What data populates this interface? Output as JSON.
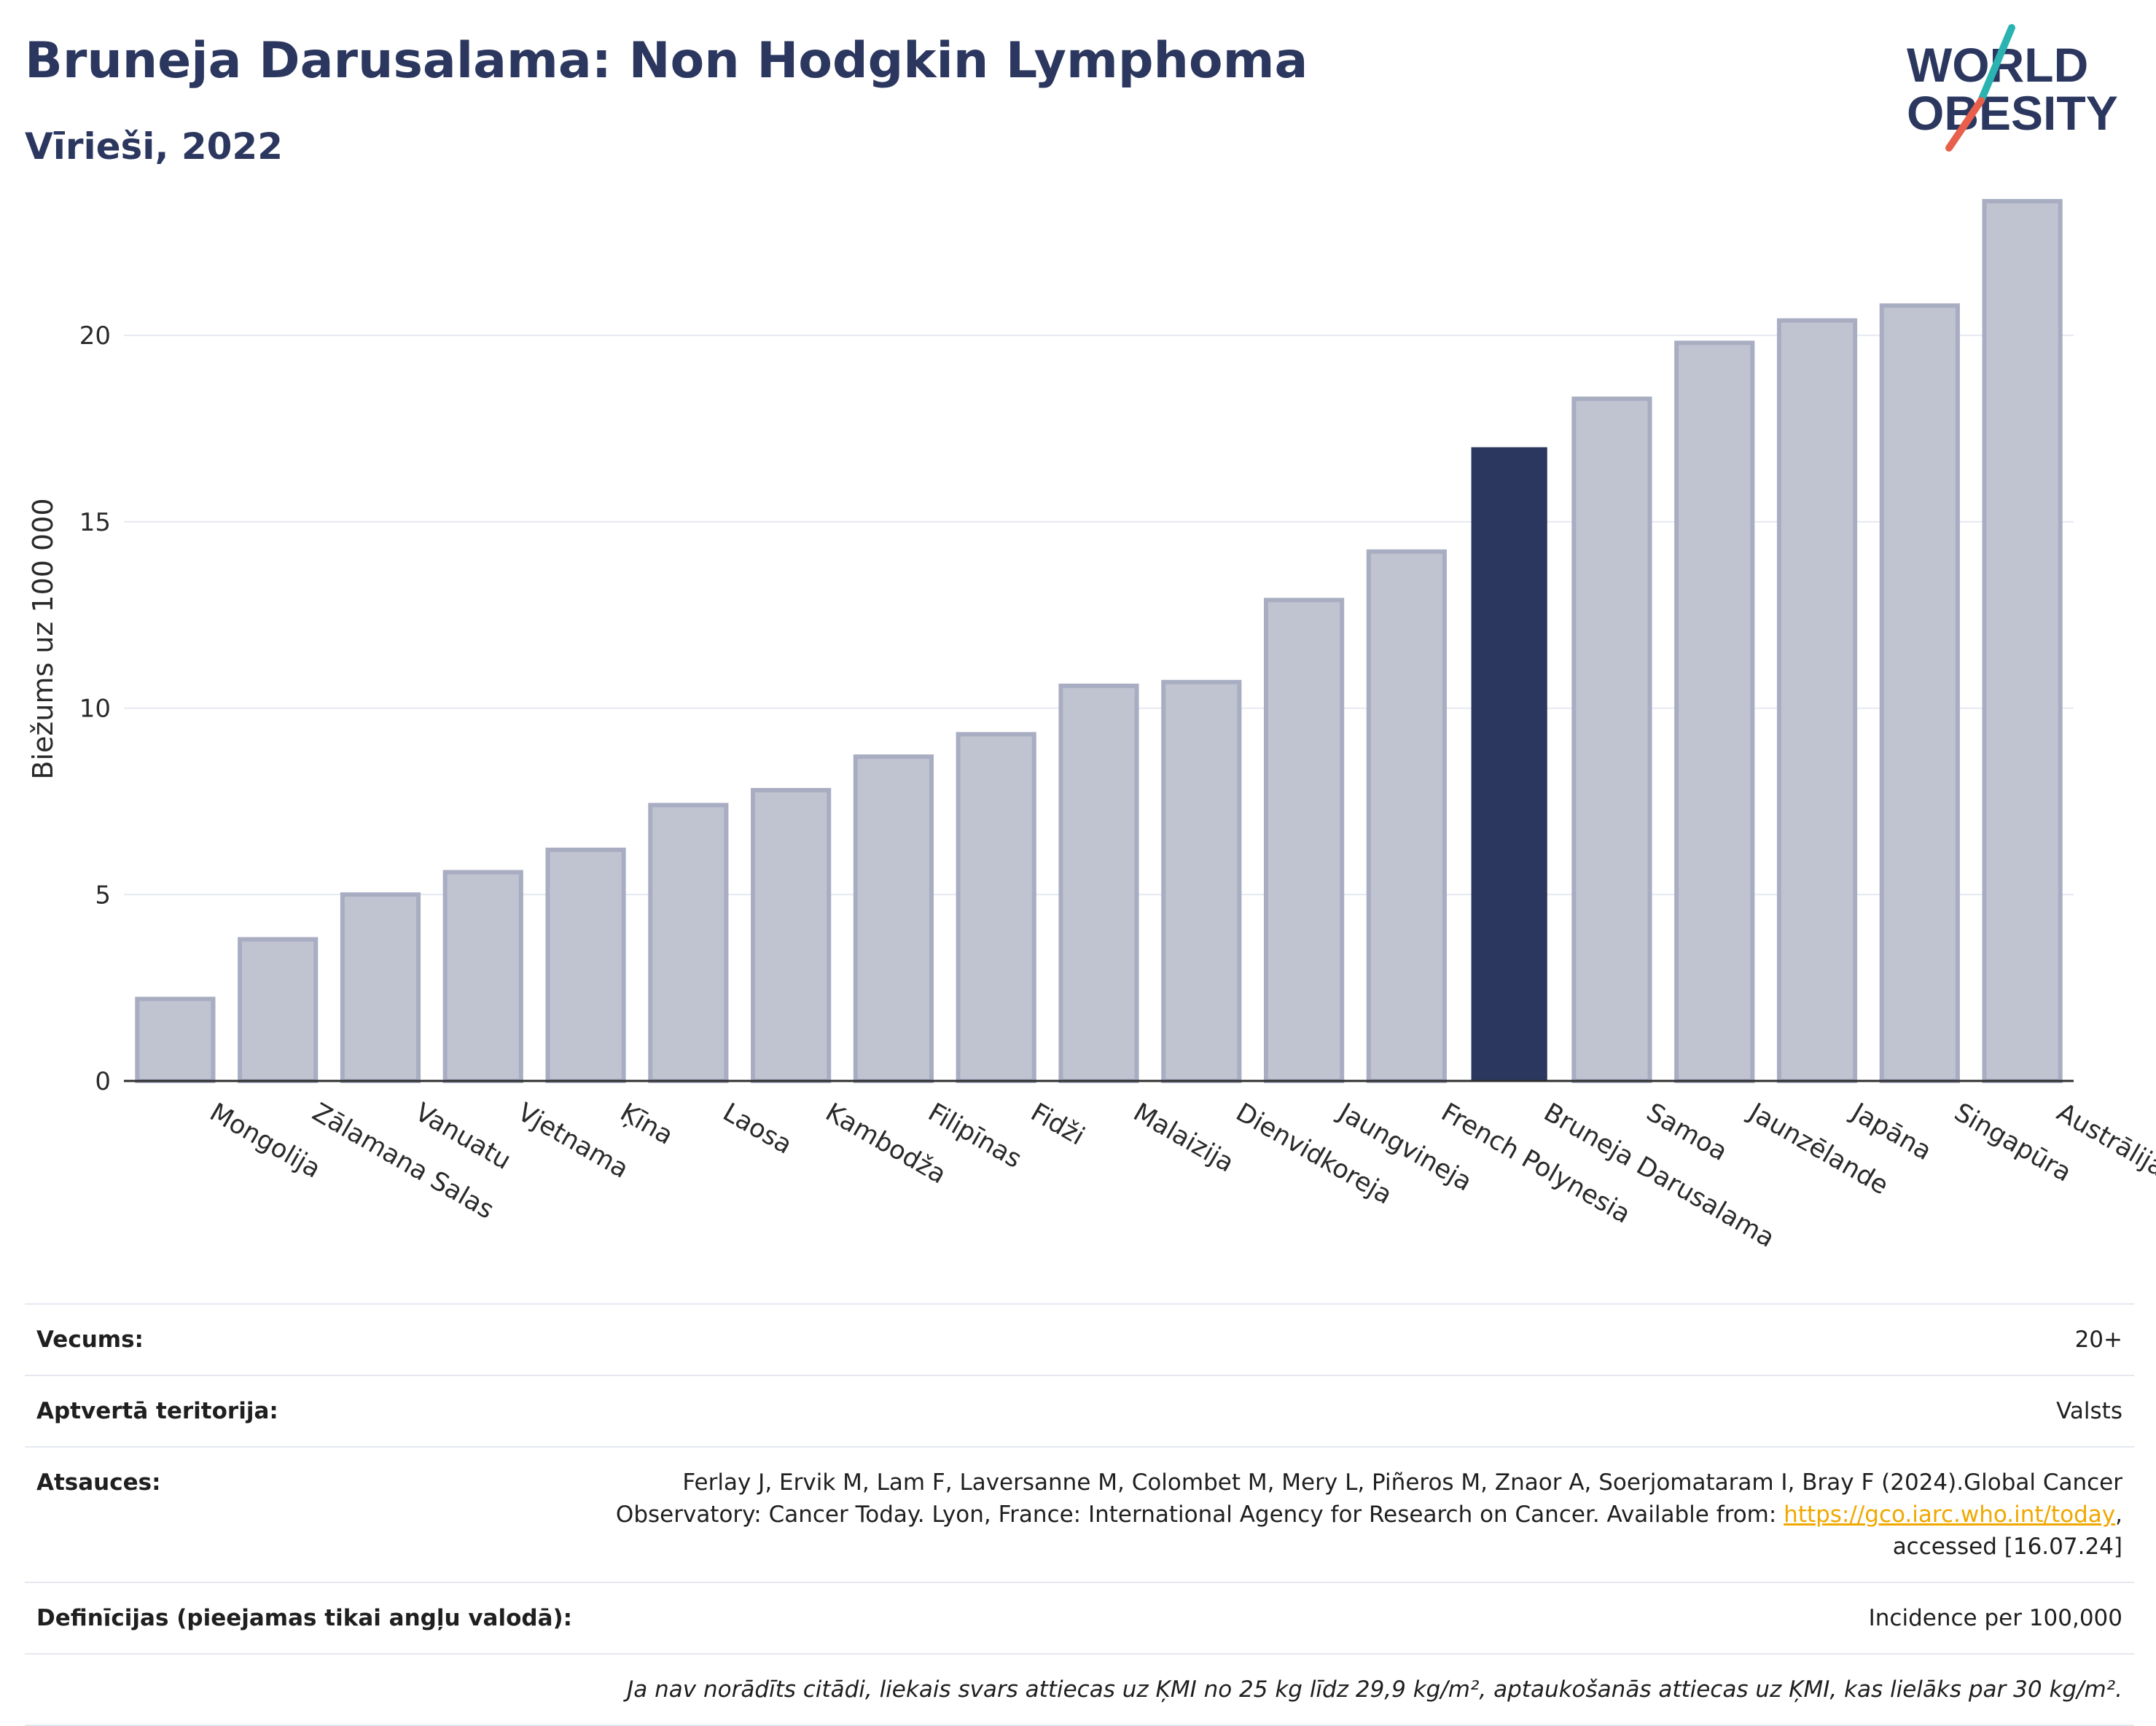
{
  "header": {
    "title": "Bruneja Darusalama: Non Hodgkin Lymphoma",
    "subtitle": "Vīrieši, 2022"
  },
  "logo": {
    "line1": "WORLD",
    "line2": "OBESITY",
    "text_color": "#2b375f",
    "slash_colors": [
      "#2ab3b1",
      "#e8604c"
    ]
  },
  "chart_data": {
    "type": "bar",
    "ylabel": "Biežums uz 100 000",
    "ylim": [
      0,
      24.5
    ],
    "yticks": [
      0,
      5,
      10,
      15,
      20
    ],
    "grid": true,
    "categories": [
      "Mongolija",
      "Zālamana Salas",
      "Vanuatu",
      "Vjetnama",
      "Ķīna",
      "Laosa",
      "Kambodža",
      "Filipīnas",
      "Fidži",
      "Malaizija",
      "Dienvidkoreja",
      "Jaungvineja",
      "French Polynesia",
      "Bruneja Darusalama",
      "Samoa",
      "Jaunzēlande",
      "Japāna",
      "Singapūra",
      "Austrālija"
    ],
    "values": [
      2.2,
      3.8,
      5.0,
      5.6,
      6.2,
      7.4,
      7.8,
      8.7,
      9.3,
      10.6,
      10.7,
      12.9,
      14.2,
      17.0,
      18.3,
      19.8,
      20.4,
      20.8,
      23.6
    ],
    "highlight": "Bruneja Darusalama",
    "colors": {
      "bar": "#c0c4d1",
      "bar_border": "#a8adc2",
      "highlight": "#2b375f",
      "grid": "#e6e8f1",
      "axis": "#2f2f2f"
    }
  },
  "info": {
    "age_label": "Vecums:",
    "age_value": "20+",
    "coverage_label": "Aptvertā teritorija:",
    "coverage_value": "Valsts",
    "refs_label": "Atsauces:",
    "refs_text_1": "Ferlay J, Ervik M, Lam F, Laversanne M, Colombet M, Mery L, Piñeros M, Znaor A, Soerjomataram I, Bray F (2024).Global Cancer Observatory: Cancer Today. Lyon, France: International Agency for Research on Cancer. Available from: ",
    "refs_link": "https://gco.iarc.who.int/today",
    "refs_text_2": ", accessed [16.07.24]",
    "defs_label": "Definīcijas (pieejamas tikai angļu valodā):",
    "defs_value": "Incidence per 100,000",
    "note": "Ja nav norādīts citādi, liekais svars attiecas uz ĶMI no 25 kg līdz 29,9 kg/m², aptaukošanās attiecas uz ĶMI, kas lielāks par 30 kg/m²."
  }
}
